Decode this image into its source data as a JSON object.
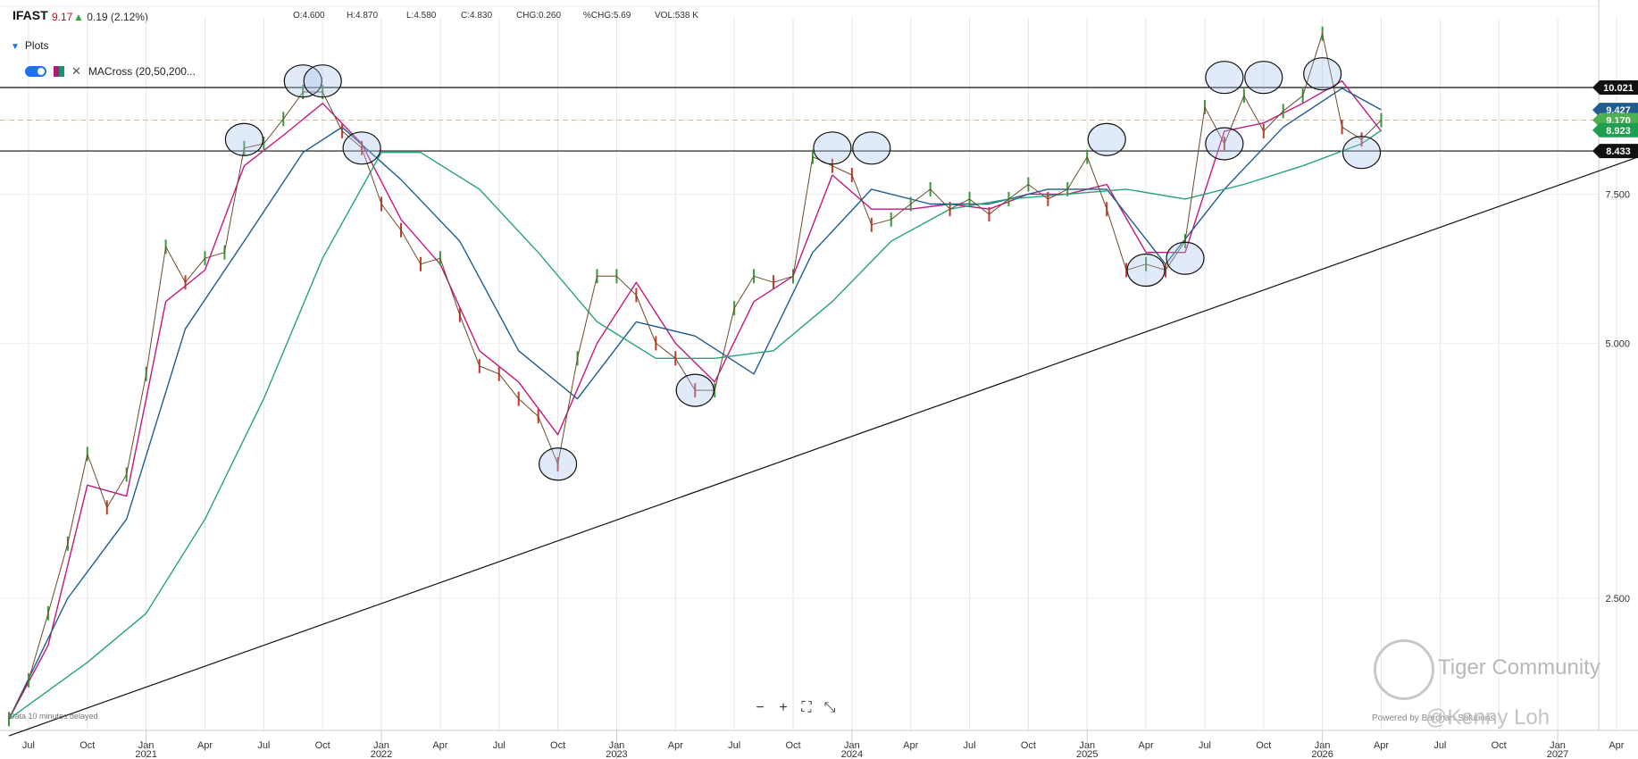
{
  "header": {
    "ticker": "IFAST",
    "last": "9.17",
    "change": "0.19 (2.12%)",
    "open": "4.600",
    "high": "4.870",
    "low": "4.580",
    "close": "4.830",
    "chg": "0.260",
    "pchg": "5.69",
    "vol": "538 K",
    "open_label": "O:",
    "high_label": "H:",
    "low_label": "L:",
    "close_label": "C:",
    "chg_label": "CHG:",
    "pchg_label": "%CHG:",
    "vol_label": "VOL:"
  },
  "plots": {
    "label": "Plots",
    "indicator": "MACross (20,50,200..."
  },
  "footer": {
    "delay_note": "Data 10 minutes delayed",
    "powered_by": "Powered by Barchart Solutions",
    "watermark": "Tiger Community",
    "author": "@Kenny Loh"
  },
  "zoom_controls": {
    "minus": "−",
    "plus": "+",
    "fit": "⛶",
    "resize": "⤡"
  },
  "chart_data": {
    "type": "line",
    "y_scale": "log",
    "ylim": [
      1.7,
      12.5
    ],
    "y_ticks": [
      "2.500",
      "5.000",
      "7.500"
    ],
    "x_ticks": [
      "Jul",
      "Oct",
      "Jan",
      "Apr",
      "Jul",
      "Oct",
      "Jan",
      "Apr",
      "Jul",
      "Oct",
      "Jan",
      "Apr",
      "Jul",
      "Oct",
      "Jan",
      "Apr",
      "Jul",
      "Oct",
      "Jan",
      "Apr",
      "Jul",
      "Oct",
      "Jan",
      "Apr",
      "Jul",
      "Oct",
      "Jan",
      "Apr"
    ],
    "x_tick_dates": [
      "2020-07",
      "2020-10",
      "2021-01",
      "2021-04",
      "2021-07",
      "2021-10",
      "2022-01",
      "2022-04",
      "2022-07",
      "2022-10",
      "2023-01",
      "2023-04",
      "2023-07",
      "2023-10",
      "2024-01",
      "2024-04",
      "2024-07",
      "2024-10",
      "2025-01",
      "2025-04",
      "2025-07",
      "2025-10",
      "2026-01",
      "2026-04",
      "2026-07",
      "2026-10",
      "2027-01",
      "2027-04"
    ],
    "year_labels": [
      "2021",
      "2022",
      "2023",
      "2024",
      "2025",
      "2026",
      "2027"
    ],
    "price_series": {
      "name": "IFAST",
      "color": "#222222",
      "x": [
        "2020-06",
        "2020-07",
        "2020-08",
        "2020-09",
        "2020-10",
        "2020-11",
        "2020-12",
        "2021-01",
        "2021-02",
        "2021-03",
        "2021-04",
        "2021-05",
        "2021-06",
        "2021-07",
        "2021-08",
        "2021-09",
        "2021-10",
        "2021-11",
        "2021-12",
        "2022-01",
        "2022-02",
        "2022-03",
        "2022-04",
        "2022-05",
        "2022-06",
        "2022-07",
        "2022-08",
        "2022-09",
        "2022-10",
        "2022-11",
        "2022-12",
        "2023-01",
        "2023-02",
        "2023-03",
        "2023-04",
        "2023-05",
        "2023-06",
        "2023-07",
        "2023-08",
        "2023-09",
        "2023-10",
        "2023-11",
        "2023-12",
        "2024-01",
        "2024-02",
        "2024-03",
        "2024-04",
        "2024-05",
        "2024-06",
        "2024-07",
        "2024-08",
        "2024-09",
        "2024-10",
        "2024-11",
        "2024-12",
        "2025-01",
        "2025-02",
        "2025-03",
        "2025-04",
        "2025-05",
        "2025-06",
        "2025-07",
        "2025-08",
        "2025-09",
        "2025-10",
        "2025-11",
        "2025-12",
        "2026-01",
        "2026-02",
        "2026-03",
        "2026-04"
      ],
      "y": [
        1.8,
        2.0,
        2.4,
        2.9,
        3.7,
        3.2,
        3.5,
        4.6,
        6.5,
        5.9,
        6.3,
        6.4,
        8.5,
        8.6,
        9.2,
        9.9,
        9.9,
        8.9,
        8.5,
        7.3,
        6.8,
        6.2,
        6.3,
        5.4,
        4.7,
        4.6,
        4.3,
        4.1,
        3.6,
        4.8,
        6.0,
        6.0,
        5.7,
        5.0,
        4.8,
        4.4,
        4.4,
        5.5,
        6.0,
        5.9,
        6.0,
        8.3,
        8.1,
        7.9,
        6.9,
        7.0,
        7.3,
        7.6,
        7.2,
        7.4,
        7.1,
        7.4,
        7.7,
        7.4,
        7.6,
        8.3,
        7.2,
        6.1,
        6.2,
        6.1,
        6.6,
        9.5,
        8.6,
        9.8,
        8.9,
        9.4,
        9.8,
        11.6,
        9.0,
        8.7,
        9.17
      ]
    },
    "moving_averages": [
      {
        "name": "MA 20",
        "color": "#c2187f",
        "x": [
          "2020-06",
          "2020-08",
          "2020-10",
          "2020-12",
          "2021-02",
          "2021-04",
          "2021-06",
          "2021-08",
          "2021-10",
          "2021-12",
          "2022-02",
          "2022-04",
          "2022-06",
          "2022-08",
          "2022-10",
          "2022-12",
          "2023-02",
          "2023-04",
          "2023-06",
          "2023-08",
          "2023-10",
          "2023-12",
          "2024-02",
          "2024-04",
          "2024-06",
          "2024-08",
          "2024-10",
          "2024-12",
          "2025-02",
          "2025-04",
          "2025-06",
          "2025-08",
          "2025-10",
          "2025-12",
          "2026-02",
          "2026-04"
        ],
        "y": [
          1.8,
          2.2,
          3.4,
          3.3,
          5.6,
          6.1,
          8.1,
          8.8,
          9.6,
          8.6,
          7.0,
          6.2,
          4.9,
          4.5,
          3.9,
          5.0,
          5.9,
          5.0,
          4.5,
          5.6,
          6.0,
          7.9,
          7.2,
          7.2,
          7.3,
          7.2,
          7.5,
          7.5,
          7.7,
          6.4,
          6.4,
          8.9,
          9.1,
          9.6,
          10.2,
          8.9
        ]
      },
      {
        "name": "MA 50",
        "color": "#1f5c8f",
        "x": [
          "2020-06",
          "2020-09",
          "2020-12",
          "2021-03",
          "2021-06",
          "2021-09",
          "2021-11",
          "2022-02",
          "2022-05",
          "2022-08",
          "2022-11",
          "2023-02",
          "2023-05",
          "2023-08",
          "2023-11",
          "2024-02",
          "2024-05",
          "2024-08",
          "2024-11",
          "2025-02",
          "2025-05",
          "2025-08",
          "2025-11",
          "2026-02",
          "2026-04"
        ],
        "y": [
          1.8,
          2.5,
          3.1,
          5.2,
          6.6,
          8.4,
          9.0,
          7.8,
          6.6,
          4.9,
          4.3,
          5.3,
          5.1,
          4.6,
          6.4,
          7.6,
          7.3,
          7.3,
          7.6,
          7.6,
          6.2,
          7.6,
          9.0,
          10.0,
          9.43
        ]
      },
      {
        "name": "MA 200",
        "color": "#26a37a",
        "x": [
          "2020-06",
          "2020-10",
          "2021-01",
          "2021-04",
          "2021-07",
          "2021-10",
          "2022-01",
          "2022-03",
          "2022-06",
          "2022-09",
          "2022-12",
          "2023-03",
          "2023-06",
          "2023-09",
          "2023-12",
          "2024-03",
          "2024-06",
          "2024-09",
          "2024-12",
          "2025-03",
          "2025-06",
          "2025-09",
          "2025-12",
          "2026-03",
          "2026-04"
        ],
        "y": [
          1.8,
          2.1,
          2.4,
          3.1,
          4.3,
          6.3,
          8.4,
          8.4,
          7.6,
          6.4,
          5.3,
          4.8,
          4.8,
          4.9,
          5.6,
          6.6,
          7.2,
          7.4,
          7.5,
          7.6,
          7.4,
          7.7,
          8.1,
          8.6,
          8.92
        ]
      }
    ],
    "annotations": {
      "horizontal_lines": [
        {
          "value": 10.021,
          "label": "10.021",
          "color": "#111111"
        },
        {
          "value": 8.433,
          "label": "8.433",
          "color": "#111111"
        }
      ],
      "dashed_line": {
        "value": 9.17,
        "color": "#d9b98b"
      },
      "trendline": {
        "from": {
          "x": "2020-06",
          "y": 1.72
        },
        "to": {
          "x": "2027-07",
          "y": 8.6
        }
      },
      "ellipses": [
        {
          "x": "2021-06",
          "y": 8.7
        },
        {
          "x": "2021-09",
          "y": 10.2
        },
        {
          "x": "2021-10",
          "y": 10.2
        },
        {
          "x": "2021-12",
          "y": 8.5
        },
        {
          "x": "2022-10",
          "y": 3.6
        },
        {
          "x": "2023-05",
          "y": 4.4
        },
        {
          "x": "2023-12",
          "y": 8.5
        },
        {
          "x": "2024-02",
          "y": 8.5
        },
        {
          "x": "2025-02",
          "y": 8.7
        },
        {
          "x": "2025-04",
          "y": 6.1
        },
        {
          "x": "2025-06",
          "y": 6.3
        },
        {
          "x": "2025-08",
          "y": 10.3
        },
        {
          "x": "2025-08",
          "y": 8.6
        },
        {
          "x": "2025-10",
          "y": 10.3
        },
        {
          "x": "2026-01",
          "y": 10.4
        },
        {
          "x": "2026-03",
          "y": 8.4
        }
      ]
    },
    "price_labels": [
      {
        "value": 10.021,
        "text": "10.021",
        "bg": "#111111",
        "fg": "#ffffff"
      },
      {
        "value": 9.427,
        "text": "9.427",
        "bg": "#1f5c8f",
        "fg": "#ffffff"
      },
      {
        "value": 9.17,
        "text": "9.170",
        "bg": "#4caf50",
        "fg": "#ffffff"
      },
      {
        "value": 8.923,
        "text": "8.923",
        "bg": "#1e9e4e",
        "fg": "#ffffff"
      },
      {
        "value": 8.433,
        "text": "8.433",
        "bg": "#111111",
        "fg": "#ffffff"
      }
    ],
    "grid": true
  }
}
